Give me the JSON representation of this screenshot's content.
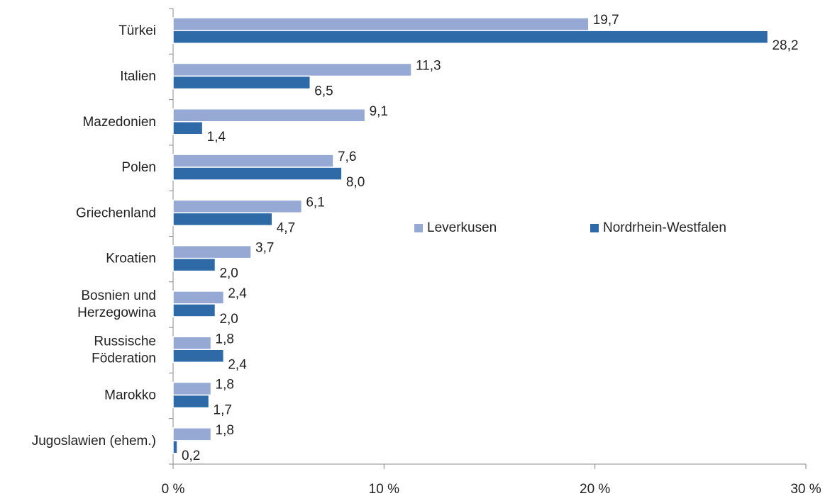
{
  "chart_data": {
    "type": "barh",
    "categories": [
      "Türkei",
      "Italien",
      "Mazedonien",
      "Polen",
      "Griechenland",
      "Kroatien",
      "Bosnien und\nHerzegowina",
      "Russische\nFöderation",
      "Marokko",
      "Jugoslawien (ehem.)"
    ],
    "series": [
      {
        "name": "Leverkusen",
        "color": "#95a9d4",
        "values": [
          19.7,
          11.3,
          9.1,
          7.6,
          6.1,
          3.7,
          2.4,
          1.8,
          1.8,
          1.8
        ],
        "value_labels": [
          "19,7",
          "11,3",
          "9,1",
          "7,6",
          "6,1",
          "3,7",
          "2,4",
          "1,8",
          "1,8",
          "1,8"
        ]
      },
      {
        "name": "Nordrhein-Westfalen",
        "color": "#2e6aa8",
        "values": [
          28.2,
          6.5,
          1.4,
          8.0,
          4.7,
          2.0,
          2.0,
          2.4,
          1.7,
          0.2
        ],
        "value_labels": [
          "28,2",
          "6,5",
          "1,4",
          "8,0",
          "4,7",
          "2,0",
          "2,0",
          "2,4",
          "1,7",
          "0,2"
        ]
      }
    ],
    "xlim": [
      0,
      30
    ],
    "xticks": [
      {
        "value": 0,
        "label": "0 %"
      },
      {
        "value": 10,
        "label": "10 %"
      },
      {
        "value": 20,
        "label": "20 %"
      },
      {
        "value": 30,
        "label": "30 %"
      }
    ],
    "grid": false,
    "legend": "center"
  }
}
